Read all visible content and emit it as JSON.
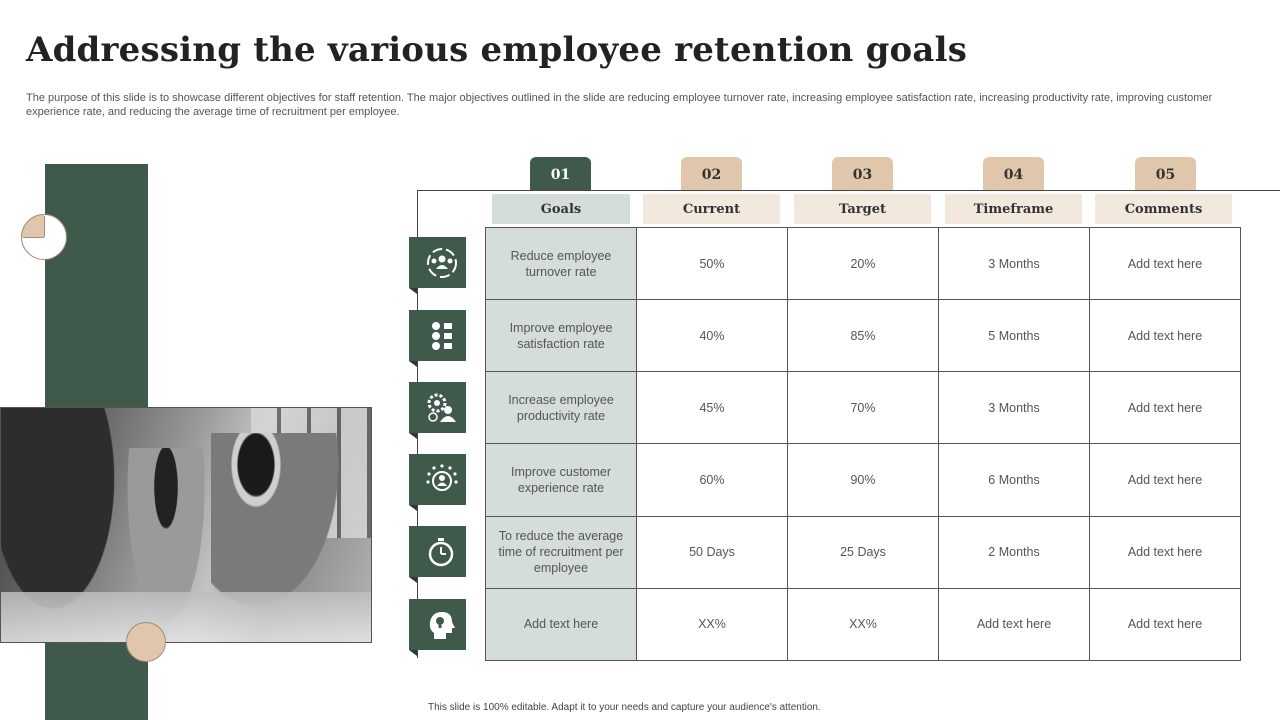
{
  "title": "Addressing the various employee retention goals",
  "subtitle": "The purpose of this slide is to showcase different objectives for staff retention. The major objectives outlined in the slide are reducing employee turnover rate, increasing employee satisfaction rate, increasing productivity rate, improving customer experience rate, and reducing the average time of recruitment per employee.",
  "tabs": [
    "01",
    "02",
    "03",
    "04",
    "05"
  ],
  "headers": [
    "Goals",
    "Current",
    "Target",
    "Timeframe",
    "Comments"
  ],
  "rows": [
    {
      "icon": "team-cycle-icon",
      "goal": "Reduce employee turnover rate",
      "current": "50%",
      "target": "20%",
      "timeframe": "3 Months",
      "comments": "Add text here"
    },
    {
      "icon": "feedback-faces-icon",
      "goal": "Improve employee satisfaction rate",
      "current": "40%",
      "target": "85%",
      "timeframe": "5 Months",
      "comments": "Add text here"
    },
    {
      "icon": "gear-person-icon",
      "goal": "Increase employee productivity rate",
      "current": "45%",
      "target": "70%",
      "timeframe": "3 Months",
      "comments": "Add text here"
    },
    {
      "icon": "star-customer-icon",
      "goal": "Improve customer experience rate",
      "current": "60%",
      "target": "90%",
      "timeframe": "6 Months",
      "comments": "Add text here"
    },
    {
      "icon": "stopwatch-icon",
      "goal": "To reduce the average time of recruitment per employee",
      "current": "50 Days",
      "target": "25 Days",
      "timeframe": "2 Months",
      "comments": "Add text here"
    },
    {
      "icon": "head-bulb-icon",
      "goal": "Add text here",
      "current": "XX%",
      "target": "XX%",
      "timeframe": "Add text here",
      "comments": "Add text here"
    }
  ],
  "footer": "This slide is 100% editable. Adapt it to your needs and capture your audience's attention.",
  "colors": {
    "accent_green": "#3f5a4b",
    "beige": "#e0c7ac",
    "goal_bg": "#d4ddd7",
    "header_bg": "#f2e8de"
  }
}
